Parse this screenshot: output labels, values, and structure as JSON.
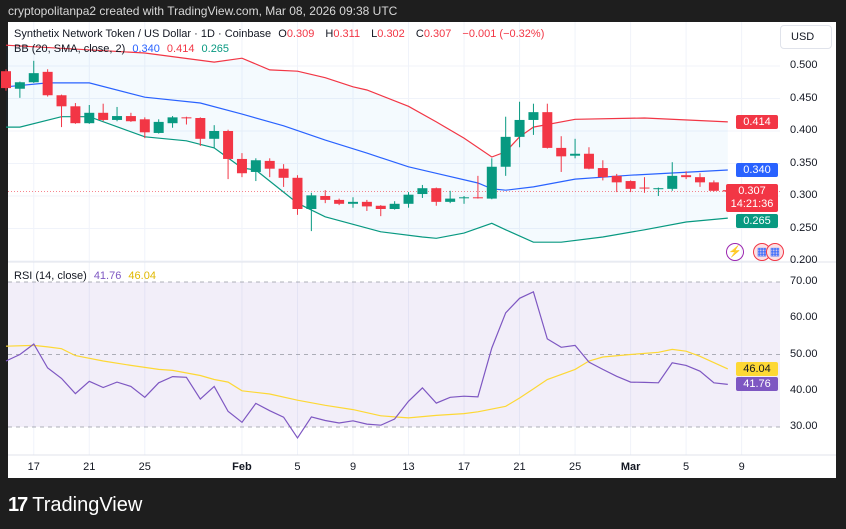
{
  "topbar": {
    "text": "cryptopolitanpa2 created with TradingView.com, Mar 08, 2026 09:38 UTC"
  },
  "legend": {
    "symbol": "Synthetix Network Token / US Dollar · 1D · Coinbase",
    "o_label": "O",
    "o": "0.309",
    "h_label": "H",
    "h": "0.311",
    "l_label": "L",
    "l": "0.302",
    "c_label": "C",
    "c": "0.307",
    "change": "−0.001 (−0.32%)",
    "bb_label": "BB (20, SMA, close, 2)",
    "bb_mid": "0.340",
    "bb_upper": "0.414",
    "bb_lower": "0.265",
    "rsi_label": "RSI (14, close)",
    "rsi": "41.76",
    "rsi_ma": "46.04"
  },
  "currency": "USD",
  "price_axis": [
    "0.500",
    "0.450",
    "0.400",
    "0.350",
    "0.300",
    "0.250",
    "0.200"
  ],
  "rsi_axis": [
    "70.00",
    "60.00",
    "50.00",
    "40.00",
    "30.00"
  ],
  "badges": {
    "upper": "0.414",
    "mid": "0.340",
    "last": "0.307",
    "countdown": "14:21:36",
    "lower": "0.265",
    "rsi_ma": "46.04",
    "rsi": "41.76"
  },
  "time_axis": [
    {
      "label": "17",
      "i": 2,
      "bold": false
    },
    {
      "label": "21",
      "i": 6,
      "bold": false
    },
    {
      "label": "25",
      "i": 10,
      "bold": false
    },
    {
      "label": "Feb",
      "i": 17,
      "bold": true
    },
    {
      "label": "5",
      "i": 21,
      "bold": false
    },
    {
      "label": "9",
      "i": 25,
      "bold": false
    },
    {
      "label": "13",
      "i": 29,
      "bold": false
    },
    {
      "label": "17",
      "i": 33,
      "bold": false
    },
    {
      "label": "21",
      "i": 37,
      "bold": false
    },
    {
      "label": "25",
      "i": 41,
      "bold": false
    },
    {
      "label": "Mar",
      "i": 45,
      "bold": true
    },
    {
      "label": "5",
      "i": 49,
      "bold": false
    },
    {
      "label": "9",
      "i": 53,
      "bold": false
    }
  ],
  "brand": "TradingView",
  "colors": {
    "up": "#089981",
    "down": "#f23645",
    "upper": "#f23645",
    "mid": "#2962ff",
    "lower": "#089981",
    "rsi": "#7e57c2",
    "rsi_ma": "#fdd835",
    "band_fill": "#2196f30d",
    "rsi_fill": "#7e57c21a"
  },
  "chart_data": {
    "type": "candlestick",
    "title": "Synthetix Network Token / US Dollar · 1D · Coinbase",
    "price_range": [
      0.2,
      0.5
    ],
    "ohlc": [
      [
        0.492,
        0.495,
        0.462,
        0.466
      ],
      [
        0.465,
        0.476,
        0.451,
        0.475
      ],
      [
        0.475,
        0.508,
        0.474,
        0.489
      ],
      [
        0.491,
        0.495,
        0.453,
        0.455
      ],
      [
        0.455,
        0.456,
        0.406,
        0.438
      ],
      [
        0.438,
        0.443,
        0.411,
        0.412
      ],
      [
        0.412,
        0.44,
        0.411,
        0.428
      ],
      [
        0.428,
        0.442,
        0.415,
        0.417
      ],
      [
        0.417,
        0.437,
        0.415,
        0.423
      ],
      [
        0.423,
        0.428,
        0.414,
        0.415
      ],
      [
        0.418,
        0.421,
        0.389,
        0.398
      ],
      [
        0.397,
        0.418,
        0.396,
        0.414
      ],
      [
        0.412,
        0.423,
        0.405,
        0.421
      ],
      [
        0.421,
        0.422,
        0.41,
        0.42
      ],
      [
        0.42,
        0.421,
        0.377,
        0.388
      ],
      [
        0.388,
        0.409,
        0.374,
        0.4
      ],
      [
        0.4,
        0.402,
        0.326,
        0.357
      ],
      [
        0.357,
        0.366,
        0.329,
        0.335
      ],
      [
        0.337,
        0.358,
        0.323,
        0.355
      ],
      [
        0.354,
        0.358,
        0.329,
        0.342
      ],
      [
        0.342,
        0.349,
        0.314,
        0.328
      ],
      [
        0.328,
        0.332,
        0.271,
        0.28
      ],
      [
        0.28,
        0.305,
        0.246,
        0.301
      ],
      [
        0.3,
        0.309,
        0.289,
        0.294
      ],
      [
        0.294,
        0.296,
        0.286,
        0.288
      ],
      [
        0.288,
        0.298,
        0.282,
        0.291
      ],
      [
        0.291,
        0.294,
        0.277,
        0.284
      ],
      [
        0.285,
        0.286,
        0.269,
        0.28
      ],
      [
        0.28,
        0.292,
        0.279,
        0.288
      ],
      [
        0.288,
        0.306,
        0.282,
        0.302
      ],
      [
        0.303,
        0.317,
        0.297,
        0.312
      ],
      [
        0.312,
        0.313,
        0.285,
        0.291
      ],
      [
        0.291,
        0.308,
        0.289,
        0.296
      ],
      [
        0.297,
        0.3,
        0.288,
        0.298
      ],
      [
        0.298,
        0.331,
        0.296,
        0.297
      ],
      [
        0.296,
        0.358,
        0.295,
        0.345
      ],
      [
        0.345,
        0.422,
        0.331,
        0.391
      ],
      [
        0.391,
        0.445,
        0.375,
        0.417
      ],
      [
        0.417,
        0.442,
        0.394,
        0.429
      ],
      [
        0.429,
        0.442,
        0.373,
        0.374
      ],
      [
        0.374,
        0.392,
        0.337,
        0.361
      ],
      [
        0.362,
        0.388,
        0.358,
        0.365
      ],
      [
        0.365,
        0.375,
        0.341,
        0.342
      ],
      [
        0.343,
        0.355,
        0.324,
        0.329
      ],
      [
        0.331,
        0.334,
        0.306,
        0.321
      ],
      [
        0.323,
        0.324,
        0.306,
        0.311
      ],
      [
        0.313,
        0.329,
        0.305,
        0.312
      ],
      [
        0.311,
        0.313,
        0.3,
        0.312
      ],
      [
        0.311,
        0.352,
        0.308,
        0.331
      ],
      [
        0.332,
        0.338,
        0.326,
        0.329
      ],
      [
        0.329,
        0.335,
        0.314,
        0.321
      ],
      [
        0.321,
        0.324,
        0.307,
        0.308
      ],
      [
        0.309,
        0.311,
        0.302,
        0.307
      ]
    ],
    "bb_upper": [
      [
        0,
        0.532
      ],
      [
        10,
        0.52
      ],
      [
        15,
        0.506
      ],
      [
        17,
        0.512
      ],
      [
        19,
        0.494
      ],
      [
        21,
        0.492
      ],
      [
        23,
        0.482
      ],
      [
        25,
        0.468
      ],
      [
        26,
        0.463
      ],
      [
        29,
        0.438
      ],
      [
        31,
        0.414
      ],
      [
        33,
        0.389
      ],
      [
        35,
        0.36
      ],
      [
        36,
        0.368
      ],
      [
        37,
        0.391
      ],
      [
        38,
        0.406
      ],
      [
        41,
        0.418
      ],
      [
        46,
        0.42
      ],
      [
        52,
        0.414
      ]
    ],
    "bb_mid": [
      [
        0,
        0.468
      ],
      [
        3,
        0.474
      ],
      [
        6,
        0.474
      ],
      [
        10,
        0.452
      ],
      [
        14,
        0.443
      ],
      [
        17,
        0.426
      ],
      [
        20,
        0.408
      ],
      [
        23,
        0.386
      ],
      [
        26,
        0.366
      ],
      [
        29,
        0.345
      ],
      [
        31,
        0.335
      ],
      [
        34,
        0.32
      ],
      [
        35,
        0.311
      ],
      [
        36,
        0.309
      ],
      [
        38,
        0.314
      ],
      [
        41,
        0.326
      ],
      [
        45,
        0.332
      ],
      [
        52,
        0.34
      ]
    ],
    "bb_lower": [
      [
        0,
        0.406
      ],
      [
        1,
        0.406
      ],
      [
        4,
        0.422
      ],
      [
        6,
        0.422
      ],
      [
        10,
        0.391
      ],
      [
        13,
        0.385
      ],
      [
        15,
        0.374
      ],
      [
        17,
        0.343
      ],
      [
        18,
        0.34
      ],
      [
        21,
        0.289
      ],
      [
        23,
        0.268
      ],
      [
        27,
        0.245
      ],
      [
        30,
        0.237
      ],
      [
        31,
        0.235
      ],
      [
        33,
        0.243
      ],
      [
        35,
        0.258
      ],
      [
        36,
        0.248
      ],
      [
        38,
        0.229
      ],
      [
        40,
        0.229
      ],
      [
        43,
        0.237
      ],
      [
        46,
        0.248
      ],
      [
        49,
        0.26
      ],
      [
        52,
        0.266
      ]
    ],
    "rsi_range": [
      30,
      70
    ],
    "rsi": [
      48.2,
      50.0,
      52.9,
      46.3,
      43.4,
      39.2,
      42.6,
      40.9,
      42.4,
      41.2,
      38.2,
      42.2,
      43.9,
      43.7,
      37.7,
      41.2,
      34.3,
      31.3,
      36.5,
      34.5,
      32.7,
      27.0,
      32.8,
      31.8,
      31.1,
      31.7,
      30.8,
      30.5,
      32.2,
      37.1,
      40.8,
      36.6,
      38.2,
      38.5,
      38.3,
      51.8,
      61.5,
      65.5,
      67.3,
      54.3,
      52.0,
      52.5,
      47.9,
      45.9,
      44.0,
      42.4,
      42.3,
      42.2,
      47.7,
      47.0,
      45.4,
      42.2,
      41.76
    ],
    "rsi_ma": [
      [
        0,
        52.3
      ],
      [
        2,
        52.5
      ],
      [
        3,
        52.1
      ],
      [
        4,
        51.6
      ],
      [
        5,
        49.7
      ],
      [
        7,
        48.2
      ],
      [
        9,
        47.0
      ],
      [
        11,
        45.9
      ],
      [
        12,
        45.6
      ],
      [
        14,
        44.2
      ],
      [
        15,
        43.1
      ],
      [
        16,
        42.4
      ],
      [
        17,
        40.0
      ],
      [
        19,
        39.1
      ],
      [
        21,
        37.4
      ],
      [
        23,
        36.0
      ],
      [
        25,
        34.8
      ],
      [
        27,
        33.1
      ],
      [
        28,
        32.8
      ],
      [
        29,
        32.5
      ],
      [
        31,
        33.2
      ],
      [
        33,
        33.7
      ],
      [
        34,
        34.2
      ],
      [
        36,
        35.7
      ],
      [
        37,
        38.0
      ],
      [
        38,
        40.5
      ],
      [
        39,
        43.1
      ],
      [
        41,
        45.9
      ],
      [
        42,
        48.2
      ],
      [
        43,
        49.3
      ],
      [
        45,
        50.0
      ],
      [
        47,
        50.6
      ],
      [
        48,
        51.4
      ],
      [
        49,
        50.9
      ],
      [
        50,
        49.5
      ],
      [
        52,
        46.04
      ]
    ]
  }
}
